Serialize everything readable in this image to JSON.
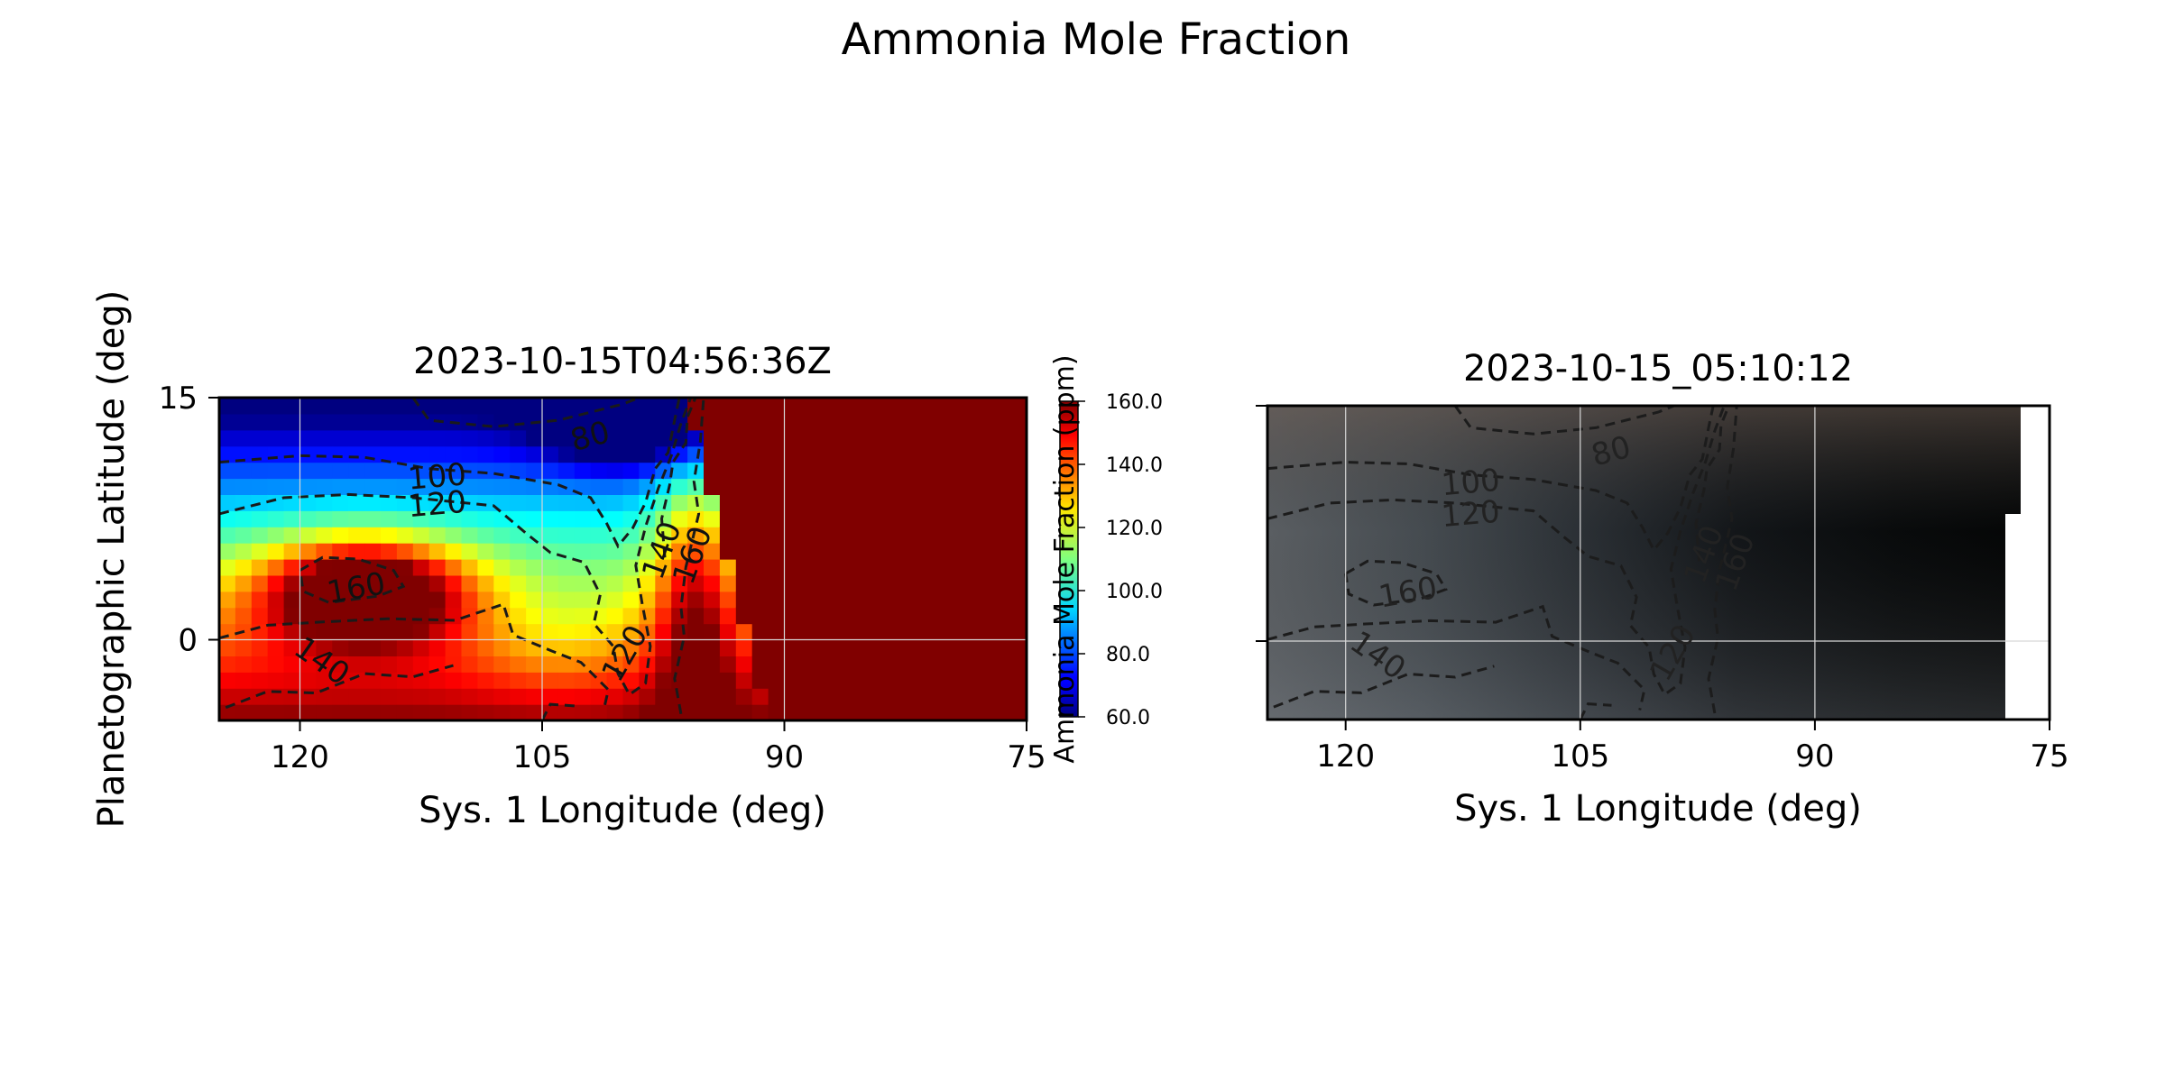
{
  "figure": {
    "title": "Ammonia Mole Fraction"
  },
  "chart_data": [
    {
      "type": "heatmap",
      "title": "2023-10-15T04:56:36Z",
      "xlabel": "Sys. 1 Longitude (deg)",
      "ylabel": "Planetographic Latitude (deg)",
      "xlim": [
        125,
        75
      ],
      "ylim": [
        -5,
        15
      ],
      "xticks": [
        "120",
        "105",
        "90",
        "75"
      ],
      "xtick_values": [
        120,
        105,
        90,
        75
      ],
      "yticks": [
        "15",
        "0"
      ],
      "ytick_values": [
        15,
        0
      ],
      "grid": true,
      "colormap": "jet",
      "colorbar": {
        "label": "Ammonia Mole Fraction (ppm)",
        "range": [
          60,
          160
        ],
        "ticks": [
          "60.0",
          "80.0",
          "100.0",
          "120.0",
          "140.0",
          "160.0"
        ],
        "tick_values": [
          60,
          80,
          100,
          120,
          140,
          160
        ]
      },
      "contour_levels": [
        80,
        100,
        120,
        140,
        160
      ],
      "contour_labels": [
        {
          "text": "80",
          "lon": 102,
          "lat": 12.5
        },
        {
          "text": "100",
          "lon": 111.5,
          "lat": 10.0
        },
        {
          "text": "120",
          "lon": 111.5,
          "lat": 8.3
        },
        {
          "text": "160",
          "lon": 116.5,
          "lat": 3.1
        },
        {
          "text": "140",
          "lon": 118.7,
          "lat": -1.4
        },
        {
          "text": "140",
          "lon": 97.5,
          "lat": 5.5
        },
        {
          "text": "160",
          "lon": 95.6,
          "lat": 5.2
        },
        {
          "text": "120",
          "lon": 99.8,
          "lat": -0.9
        }
      ]
    },
    {
      "type": "heatmap",
      "title": "2023-10-15_05:10:12",
      "xlabel": "Sys. 1 Longitude (deg)",
      "xlim": [
        125,
        75
      ],
      "ylim": [
        -5,
        15
      ],
      "xticks": [
        "120",
        "105",
        "90",
        "75"
      ],
      "xtick_values": [
        120,
        105,
        90,
        75
      ],
      "grid": true,
      "colormap": "grayscale image",
      "contour_levels": [
        80,
        100,
        120,
        140,
        160
      ],
      "contour_labels": [
        {
          "text": "80",
          "lon": 103,
          "lat": 12.0
        },
        {
          "text": "100",
          "lon": 112,
          "lat": 10.0
        },
        {
          "text": "120",
          "lon": 112,
          "lat": 8.0
        },
        {
          "text": "160",
          "lon": 116,
          "lat": 3.0
        },
        {
          "text": "140",
          "lon": 118,
          "lat": -1.0
        },
        {
          "text": "140",
          "lon": 97,
          "lat": 5.5
        },
        {
          "text": "160",
          "lon": 95,
          "lat": 5.0
        },
        {
          "text": "120",
          "lon": 99,
          "lat": -0.8
        }
      ]
    }
  ]
}
